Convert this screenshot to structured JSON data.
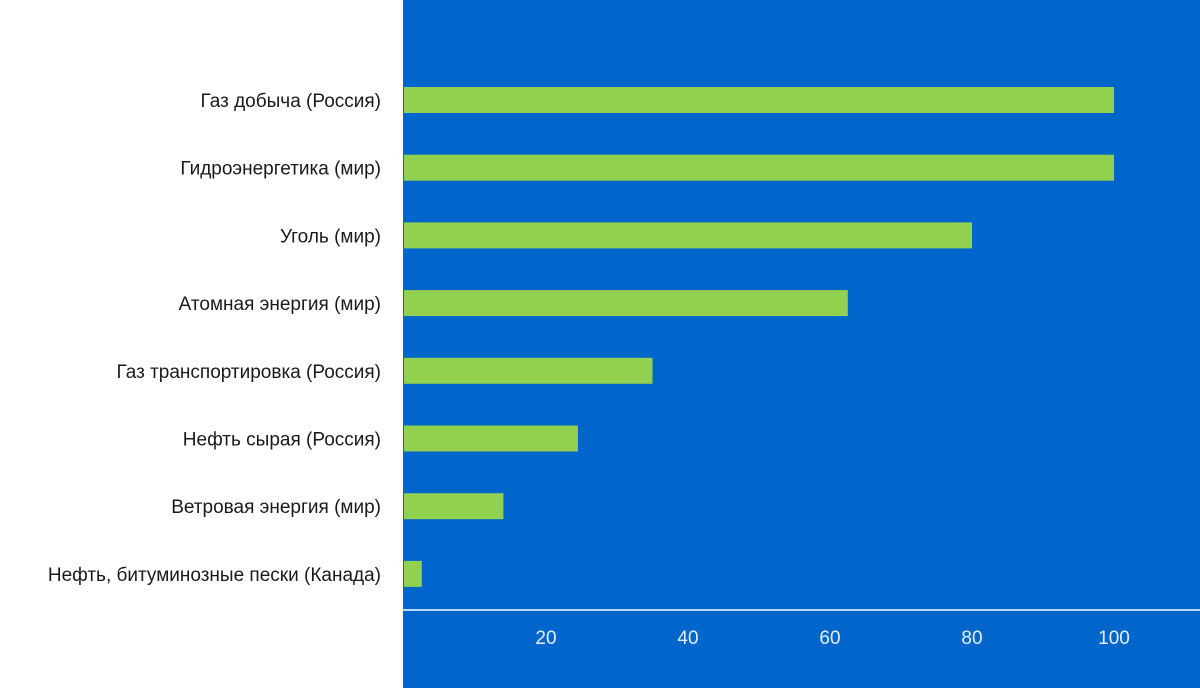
{
  "chart_data": {
    "type": "bar",
    "orientation": "horizontal",
    "categories": [
      "Газ добыча (Россия)",
      "Гидроэнергетика (мир)",
      "Уголь (мир)",
      "Атомная энергия (мир)",
      "Газ транспортировка (Россия)",
      "Нефть сырая (Россия)",
      "Ветровая энергия (мир)",
      "Нефть, битуминозные пески (Канада)"
    ],
    "values": [
      100,
      100,
      80,
      62.5,
      35,
      24.5,
      14,
      2.5
    ],
    "x_ticks": [
      20,
      40,
      60,
      80,
      100
    ],
    "xlim": [
      0,
      112
    ],
    "title": "",
    "xlabel": "",
    "ylabel": "",
    "grid": false,
    "legend": "none",
    "colors": {
      "plot_background": "#0066CC",
      "bar": "#92D050",
      "axis_line": "#FFFFFF",
      "tick_text": "#E6EEFC",
      "category_text": "#1A1A1A"
    }
  }
}
